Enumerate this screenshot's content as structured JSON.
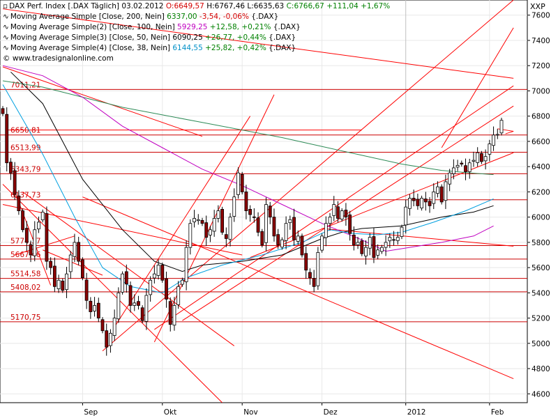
{
  "header": {
    "main_line": {
      "name": "DAX Perf. Index [.DAX  Täglich] 03.02.2012",
      "open": "O:6649,57",
      "high": "H:6767,46",
      "low": "L:6635,63",
      "close": "C:6766,67",
      "change": "+111,04",
      "change_pct": "+1,67%"
    },
    "indicators": [
      {
        "label": "Moving Average Simple [Close, 200, Nein]",
        "value": "6337,00",
        "change": "-3,54",
        "change_pct": "-0,06%",
        "sym": "{.DAX}",
        "color": "#008000"
      },
      {
        "label": "Moving Average Simple(2) [Close, 100, Nein]",
        "value": "5929,25",
        "change": "+12,58",
        "change_pct": "+0,21%",
        "sym": "{.DAX}",
        "color": "#c000c0"
      },
      {
        "label": "Moving Average Simple(3) [Close, 50, Nein]",
        "value": "6090,25",
        "change": "+26,77",
        "change_pct": "+0,44%",
        "sym": "{.DAX}",
        "color": "#000000"
      },
      {
        "label": "Moving Average Simple(4) [Close, 38, Nein]",
        "value": "6144,55",
        "change": "+25,82",
        "change_pct": "+0,42%",
        "sym": "{.DAX}",
        "color": "#0090c8"
      }
    ],
    "watermark": "www.tradesignalonline.com",
    "unit_label": "XXP"
  },
  "colors": {
    "up_candle": "#ffffff",
    "down_candle": "#8b0000",
    "candle_outline": "#000000",
    "trendline": "#ff0000",
    "level_line": "#cc0000",
    "ma200": "#2e8b57",
    "ma100": "#c000c0",
    "ma50": "#000000",
    "ma38": "#00a0e0",
    "grid": "#e8e8e8"
  },
  "chart_data": {
    "type": "candlestick",
    "x_tick_labels": [
      "Sep",
      "Okt",
      "Nov",
      "Dez",
      "2012",
      "Feb"
    ],
    "x_tick_days": [
      20,
      40,
      60,
      80,
      101,
      122
    ],
    "y_ticks": [
      4600,
      4800,
      5000,
      5200,
      5400,
      5600,
      5800,
      6000,
      6200,
      6400,
      6600,
      6800,
      7000,
      7200,
      7400,
      7600
    ],
    "ylim": [
      4530,
      7720
    ],
    "xlim": [
      0,
      128
    ],
    "grid": true,
    "levels": [
      {
        "label": "7011,21",
        "value": 7011.21
      },
      {
        "label": "6650,81",
        "value": 6650.81
      },
      {
        "label": "6513,99",
        "value": 6513.99
      },
      {
        "label": "6343,79",
        "value": 6343.79
      },
      {
        "label": "6137,73",
        "value": 6137.73
      },
      {
        "label": "5774,37",
        "value": 5774.37
      },
      {
        "label": "5667,46",
        "value": 5667.46
      },
      {
        "label": "5514,58",
        "value": 5514.58
      },
      {
        "label": "5408,02",
        "value": 5408.02
      },
      {
        "label": "5170,75",
        "value": 5170.75
      }
    ],
    "closes": [
      6820,
      6430,
      6350,
      6180,
      6050,
      5900,
      5800,
      5700,
      5900,
      5960,
      6040,
      5650,
      5600,
      5450,
      5500,
      5420,
      5550,
      5700,
      5800,
      5650,
      5520,
      5340,
      5250,
      5300,
      5200,
      5100,
      4970,
      5080,
      5200,
      5400,
      5550,
      5470,
      5300,
      5320,
      5300,
      5180,
      5380,
      5500,
      5550,
      5620,
      5500,
      5350,
      5150,
      5300,
      5450,
      5500,
      5760,
      5950,
      5990,
      5980,
      5950,
      5840,
      5900,
      5990,
      6050,
      5880,
      5830,
      6000,
      6160,
      6350,
      6200,
      6050,
      6020,
      6000,
      5880,
      5780,
      6100,
      6000,
      5850,
      5780,
      5820,
      5950,
      5980,
      5820,
      5850,
      5700,
      5580,
      5520,
      5450,
      5720,
      5850,
      5950,
      6000,
      6100,
      5990,
      6050,
      6000,
      5870,
      5780,
      5800,
      5710,
      5760,
      5840,
      5680,
      5740,
      5760,
      5800,
      5840,
      5820,
      5840,
      5920,
      6080,
      6150,
      6130,
      6090,
      6150,
      6120,
      6090,
      6200,
      6240,
      6120,
      6280,
      6350,
      6390,
      6410,
      6420,
      6360,
      6430,
      6450,
      6510,
      6440,
      6480,
      6580,
      6650,
      6655,
      6767
    ],
    "ma200": [
      [
        0,
        7080
      ],
      [
        10,
        7030
      ],
      [
        20,
        6950
      ],
      [
        30,
        6870
      ],
      [
        40,
        6810
      ],
      [
        50,
        6750
      ],
      [
        60,
        6690
      ],
      [
        70,
        6630
      ],
      [
        80,
        6560
      ],
      [
        90,
        6490
      ],
      [
        100,
        6420
      ],
      [
        110,
        6370
      ],
      [
        118,
        6348
      ],
      [
        123,
        6337
      ]
    ],
    "ma100": [
      [
        0,
        7200
      ],
      [
        10,
        7120
      ],
      [
        20,
        6950
      ],
      [
        30,
        6720
      ],
      [
        40,
        6550
      ],
      [
        50,
        6380
      ],
      [
        60,
        6250
      ],
      [
        70,
        6100
      ],
      [
        80,
        5950
      ],
      [
        90,
        5820
      ],
      [
        96,
        5730
      ],
      [
        102,
        5760
      ],
      [
        110,
        5800
      ],
      [
        118,
        5850
      ],
      [
        123,
        5930
      ]
    ],
    "ma50": [
      [
        2,
        7150
      ],
      [
        10,
        6900
      ],
      [
        20,
        6300
      ],
      [
        30,
        5900
      ],
      [
        38,
        5650
      ],
      [
        45,
        5570
      ],
      [
        50,
        5620
      ],
      [
        60,
        5650
      ],
      [
        70,
        5700
      ],
      [
        80,
        5830
      ],
      [
        85,
        5880
      ],
      [
        90,
        5910
      ],
      [
        100,
        5930
      ],
      [
        110,
        6000
      ],
      [
        118,
        6040
      ],
      [
        123,
        6090
      ]
    ],
    "ma38": [
      [
        0,
        7050
      ],
      [
        10,
        6500
      ],
      [
        18,
        6000
      ],
      [
        25,
        5600
      ],
      [
        32,
        5450
      ],
      [
        40,
        5400
      ],
      [
        46,
        5520
      ],
      [
        55,
        5620
      ],
      [
        65,
        5700
      ],
      [
        75,
        5800
      ],
      [
        82,
        5900
      ],
      [
        88,
        5870
      ],
      [
        94,
        5860
      ],
      [
        100,
        5880
      ],
      [
        108,
        5960
      ],
      [
        116,
        6050
      ],
      [
        123,
        6145
      ]
    ],
    "trendlines": [
      [
        [
          0,
          7190
        ],
        [
          50,
          6640
        ]
      ],
      [
        [
          1,
          6690
        ],
        [
          90,
          6690
        ]
      ],
      [
        [
          20,
          6160
        ],
        [
          128,
          4720
        ]
      ],
      [
        [
          0,
          6260
        ],
        [
          55,
          4530
        ]
      ],
      [
        [
          5,
          6200
        ],
        [
          58,
          4980
        ]
      ],
      [
        [
          25,
          4940
        ],
        [
          128,
          7720
        ]
      ],
      [
        [
          38,
          5110
        ],
        [
          128,
          7040
        ]
      ],
      [
        [
          45,
          5180
        ],
        [
          128,
          6880
        ]
      ],
      [
        [
          28,
          5130
        ],
        [
          62,
          6800
        ]
      ],
      [
        [
          38,
          5010
        ],
        [
          68,
          6970
        ]
      ],
      [
        [
          10,
          5740
        ],
        [
          25,
          5540
        ]
      ],
      [
        [
          3,
          5700
        ],
        [
          18,
          5850
        ]
      ],
      [
        [
          3,
          6200
        ],
        [
          12,
          5460
        ]
      ],
      [
        [
          62,
          5680
        ],
        [
          128,
          6510
        ]
      ],
      [
        [
          80,
          5910
        ],
        [
          128,
          5770
        ]
      ],
      [
        [
          110,
          6550
        ],
        [
          128,
          7500
        ]
      ],
      [
        [
          0,
          7650
        ],
        [
          128,
          7100
        ]
      ],
      [
        [
          0,
          6100
        ],
        [
          60,
          5700
        ]
      ]
    ]
  }
}
